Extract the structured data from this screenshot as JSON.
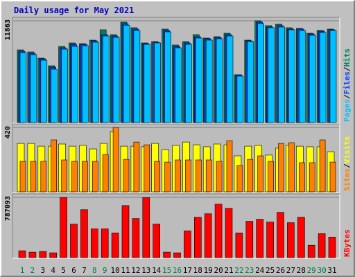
{
  "chart_data": [
    {
      "type": "bar",
      "title": "Daily usage for May 2021",
      "series": [
        {
          "name": "Hits",
          "color": "#00805c",
          "values": [
            8470,
            8228,
            7502,
            6615,
            8873,
            9277,
            9196,
            9600,
            10809,
            10245,
            11700,
            11051,
            9277,
            9438,
            10890,
            9035,
            9438,
            10245,
            9842,
            10003,
            10406,
            5566,
            9600,
            11863,
            11294,
            11455,
            11051,
            10971,
            10406,
            10729,
            10890
          ]
        },
        {
          "name": "Files",
          "color": "#0040ff",
          "values": [
            8309,
            8067,
            7421,
            6453,
            8712,
            9115,
            9115,
            9519,
            10245,
            10084,
            11520,
            10890,
            9196,
            9358,
            10729,
            8873,
            9277,
            10003,
            9761,
            9922,
            10245,
            5566,
            9519,
            11700,
            11133,
            11294,
            10890,
            10890,
            10326,
            10648,
            10810
          ]
        },
        {
          "name": "Pages",
          "color": "#00c0ff",
          "values": [
            8148,
            7905,
            7260,
            6211,
            8551,
            8873,
            8954,
            9358,
            10084,
            9922,
            11350,
            10729,
            9115,
            9277,
            10568,
            8712,
            9115,
            9842,
            9600,
            9761,
            10084,
            5405,
            9438,
            11540,
            11052,
            11133,
            10810,
            10729,
            10165,
            10487,
            10729
          ]
        }
      ],
      "legend_separator": "/",
      "ylim": [
        0,
        12100
      ],
      "yticks": [
        11863
      ]
    },
    {
      "type": "bar",
      "series": [
        {
          "name": "Visits",
          "color": "#ffff00",
          "values": [
            316,
            316,
            298,
            298,
            312,
            298,
            303,
            280,
            316,
            393,
            298,
            298,
            294,
            316,
            276,
            303,
            325,
            307,
            294,
            312,
            307,
            235,
            298,
            303,
            240,
            285,
            303,
            298,
            294,
            294,
            262
          ]
        },
        {
          "name": "Sites",
          "color": "#ff8000",
          "values": [
            199,
            199,
            199,
            339,
            208,
            199,
            199,
            199,
            244,
            420,
            212,
            325,
            307,
            199,
            194,
            208,
            208,
            208,
            208,
            199,
            334,
            172,
            212,
            235,
            199,
            316,
            321,
            190,
            190,
            339,
            194
          ]
        }
      ],
      "legend_separator": "/",
      "ylim": [
        0,
        434
      ],
      "yticks": [
        420
      ]
    },
    {
      "type": "bar",
      "categories": [
        "1",
        "2",
        "3",
        "4",
        "5",
        "6",
        "7",
        "8",
        "9",
        "10",
        "11",
        "12",
        "13",
        "14",
        "15",
        "16",
        "17",
        "18",
        "19",
        "20",
        "21",
        "22",
        "23",
        "24",
        "25",
        "26",
        "27",
        "28",
        "29",
        "30",
        "31"
      ],
      "category_colors": [
        "#008040",
        "#008040",
        "#000000",
        "#000000",
        "#000000",
        "#000000",
        "#000000",
        "#008040",
        "#008040",
        "#000000",
        "#000000",
        "#000000",
        "#000000",
        "#000000",
        "#008040",
        "#008040",
        "#000000",
        "#000000",
        "#000000",
        "#000000",
        "#000000",
        "#008040",
        "#008040",
        "#000000",
        "#000000",
        "#000000",
        "#000000",
        "#000000",
        "#008040",
        "#008040",
        "#000000"
      ],
      "series": [
        {
          "name": "KBytes",
          "color": "#ff0000",
          "values": [
            89450,
            71560,
            80505,
            62615,
            787093,
            438300,
            626150,
            375700,
            375700,
            322000,
            679800,
            509900,
            785000,
            438300,
            71560,
            62615,
            348900,
            527800,
            572500,
            697700,
            644000,
            322000,
            474100,
            500900,
            465100,
            590400,
            456200,
            527800,
            161000,
            313100,
            268400
          ]
        }
      ],
      "ylim": [
        0,
        814000
      ],
      "yticks": [
        787093
      ]
    }
  ]
}
